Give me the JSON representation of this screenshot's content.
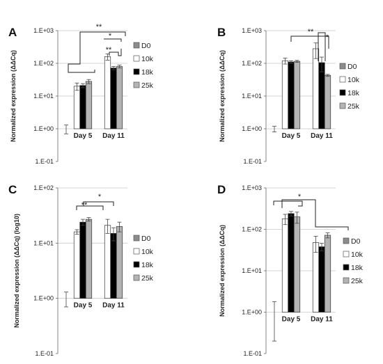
{
  "figure": {
    "colors": {
      "D0": "#8c8c8c",
      "10k": "#ffffff",
      "18k": "#000000",
      "25k": "#b4b4b4"
    }
  },
  "chart_data": [
    {
      "panel": "A",
      "type": "bar",
      "ylabel": "Normalized expression (ΔΔCq)",
      "yscale": "log",
      "ylim": [
        0.1,
        1000
      ],
      "yticks": [
        "1.E-01",
        "1.E+00",
        "1.E+01",
        "1.E+02",
        "1.E+03"
      ],
      "categories": [
        "Day 5",
        "Day 11"
      ],
      "series": [
        {
          "name": "D0",
          "values": [
            1.0,
            null
          ],
          "errors": [
            0.3,
            null
          ]
        },
        {
          "name": "10k",
          "values": [
            20,
            160
          ],
          "errors": [
            5,
            35
          ]
        },
        {
          "name": "18k",
          "values": [
            21,
            72
          ],
          "errors": [
            3,
            8
          ]
        },
        {
          "name": "25k",
          "values": [
            28,
            80
          ],
          "errors": [
            4,
            8
          ]
        }
      ],
      "significance": [
        "**",
        "**",
        "*"
      ],
      "legend": "right"
    },
    {
      "panel": "B",
      "type": "bar",
      "ylabel": "Normalized expression (ΔΔCq)",
      "yscale": "log",
      "ylim": [
        0.1,
        1000
      ],
      "yticks": [
        "1.E-01",
        "1.E+00",
        "1.E+01",
        "1.E+02",
        "1.E+03"
      ],
      "categories": [
        "Day 5",
        "Day 11"
      ],
      "series": [
        {
          "name": "D0",
          "values": [
            1.0,
            null
          ],
          "errors": [
            0.2,
            null
          ]
        },
        {
          "name": "10k",
          "values": [
            120,
            280
          ],
          "errors": [
            25,
            140
          ]
        },
        {
          "name": "18k",
          "values": [
            110,
            105
          ],
          "errors": [
            10,
            50
          ]
        },
        {
          "name": "25k",
          "values": [
            115,
            43
          ],
          "errors": [
            8,
            3
          ]
        }
      ],
      "significance": [
        "**",
        "*"
      ],
      "legend": "right"
    },
    {
      "panel": "C",
      "type": "bar",
      "ylabel": "Normalized expression (ΔΔCq) (log10)",
      "yscale": "log",
      "ylim": [
        0.1,
        100
      ],
      "yticks": [
        "1.E-01",
        "1.E+00",
        "1.E+01",
        "1.E+02"
      ],
      "categories": [
        "Day 5",
        "Day 11"
      ],
      "series": [
        {
          "name": "D0",
          "values": [
            1.0,
            null
          ],
          "errors": [
            0.3,
            null
          ]
        },
        {
          "name": "10k",
          "values": [
            16,
            21
          ],
          "errors": [
            1.5,
            6
          ]
        },
        {
          "name": "18k",
          "values": [
            24,
            15
          ],
          "errors": [
            3,
            4
          ]
        },
        {
          "name": "25k",
          "values": [
            27,
            20
          ],
          "errors": [
            2,
            4
          ]
        }
      ],
      "significance": [
        "*",
        "**"
      ],
      "legend": "right"
    },
    {
      "panel": "D",
      "type": "bar",
      "ylabel": "Normalized expression (ΔΔCq)",
      "yscale": "log",
      "ylim": [
        0.1,
        1000
      ],
      "yticks": [
        "1.E-01",
        "1.E+00",
        "1.E+01",
        "1.E+02",
        "1.E+03"
      ],
      "categories": [
        "Day 5",
        "Day 11"
      ],
      "series": [
        {
          "name": "D0",
          "values": [
            1.0,
            null
          ],
          "errors": [
            0.8,
            null
          ]
        },
        {
          "name": "10k",
          "values": [
            180,
            48
          ],
          "errors": [
            50,
            20
          ]
        },
        {
          "name": "18k",
          "values": [
            240,
            38
          ],
          "errors": [
            30,
            8
          ]
        },
        {
          "name": "25k",
          "values": [
            200,
            72
          ],
          "errors": [
            60,
            10
          ]
        }
      ],
      "significance": [
        "*"
      ],
      "legend": "right"
    }
  ]
}
